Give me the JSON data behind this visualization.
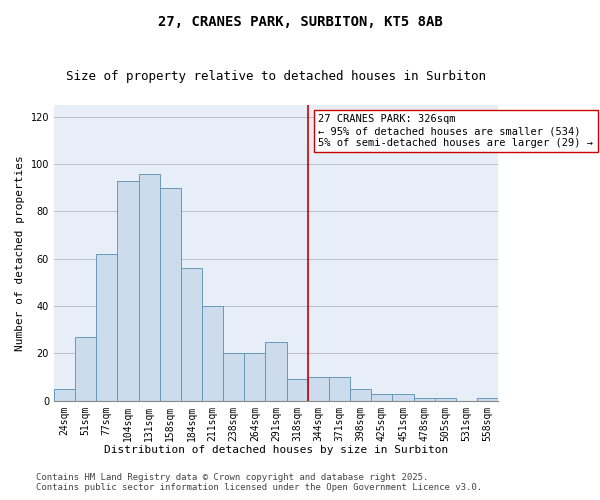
{
  "title": "27, CRANES PARK, SURBITON, KT5 8AB",
  "subtitle": "Size of property relative to detached houses in Surbiton",
  "xlabel": "Distribution of detached houses by size in Surbiton",
  "ylabel": "Number of detached properties",
  "bar_labels": [
    "24sqm",
    "51sqm",
    "77sqm",
    "104sqm",
    "131sqm",
    "158sqm",
    "184sqm",
    "211sqm",
    "238sqm",
    "264sqm",
    "291sqm",
    "318sqm",
    "344sqm",
    "371sqm",
    "398sqm",
    "425sqm",
    "451sqm",
    "478sqm",
    "505sqm",
    "531sqm",
    "558sqm"
  ],
  "bar_values": [
    5,
    27,
    62,
    93,
    96,
    90,
    56,
    40,
    20,
    20,
    25,
    9,
    10,
    10,
    5,
    3,
    3,
    1,
    1,
    0,
    1
  ],
  "bar_color": "#ccdcec",
  "bar_edgecolor": "#6699bb",
  "vline_x": 11.5,
  "vline_color": "#cc0000",
  "annotation_text": "27 CRANES PARK: 326sqm\n← 95% of detached houses are smaller (534)\n5% of semi-detached houses are larger (29) →",
  "annotation_box_color": "white",
  "annotation_box_edgecolor": "#cc0000",
  "ylim": [
    0,
    125
  ],
  "yticks": [
    0,
    20,
    40,
    60,
    80,
    100,
    120
  ],
  "grid_color": "#bbbbcc",
  "bg_color": "#e8eef8",
  "footnote": "Contains HM Land Registry data © Crown copyright and database right 2025.\nContains public sector information licensed under the Open Government Licence v3.0.",
  "title_fontsize": 10,
  "subtitle_fontsize": 9,
  "axis_label_fontsize": 8,
  "tick_fontsize": 7,
  "annotation_fontsize": 7.5,
  "footnote_fontsize": 6.5
}
